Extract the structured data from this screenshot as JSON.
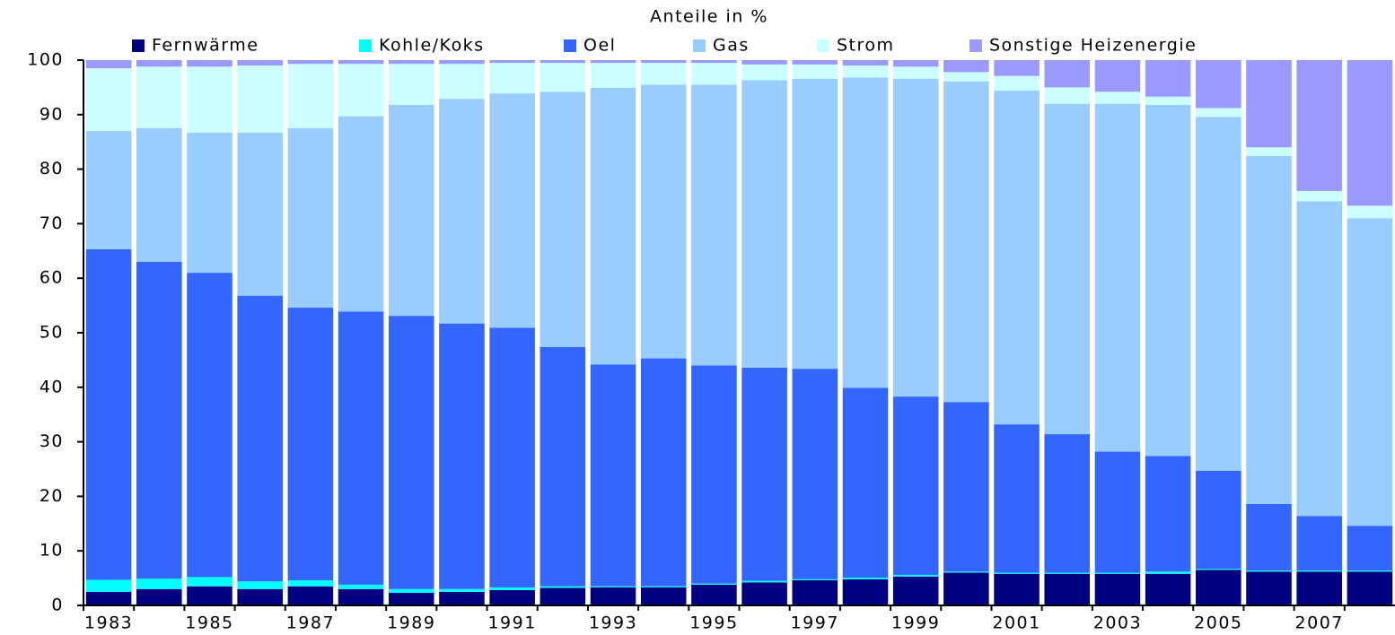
{
  "chart_data": {
    "type": "stacked_bar",
    "title": "Anteile in %",
    "categories": [
      "1983",
      null,
      "1985",
      null,
      "1987",
      null,
      "1989",
      null,
      "1991",
      null,
      "1993",
      null,
      "1995",
      null,
      "1997",
      null,
      "1999",
      null,
      "2001",
      null,
      "2003",
      null,
      "2005",
      null,
      "2007",
      null
    ],
    "series": [
      {
        "name": "Fernwärme",
        "color": "#000080",
        "values": [
          2.5,
          3.0,
          3.5,
          3.0,
          3.5,
          3.0,
          2.3,
          2.5,
          2.8,
          3.2,
          3.3,
          3.3,
          3.8,
          4.2,
          4.6,
          4.8,
          5.3,
          6.0,
          5.8,
          5.8,
          5.8,
          5.8,
          6.5,
          6.2,
          6.2,
          6.2
        ]
      },
      {
        "name": "Kohle/Koks",
        "color": "#00ffff",
        "values": [
          2.2,
          1.9,
          1.7,
          1.4,
          1.1,
          0.8,
          0.7,
          0.5,
          0.5,
          0.3,
          0.2,
          0.2,
          0.2,
          0.3,
          0.2,
          0.3,
          0.3,
          0.2,
          0.2,
          0.2,
          0.2,
          0.4,
          0.2,
          0.2,
          0.2,
          0.2
        ]
      },
      {
        "name": "Oel",
        "color": "#3366ff",
        "values": [
          60.6,
          58.1,
          55.8,
          52.4,
          50.0,
          50.1,
          50.1,
          48.7,
          47.6,
          43.9,
          40.7,
          41.8,
          40.0,
          39.1,
          38.6,
          34.8,
          32.7,
          31.1,
          27.2,
          25.4,
          22.2,
          21.2,
          18.0,
          12.2,
          10.0,
          8.2
        ]
      },
      {
        "name": "Gas",
        "color": "#99ccff",
        "values": [
          21.7,
          24.5,
          25.7,
          29.9,
          32.9,
          35.8,
          38.7,
          41.2,
          43.0,
          46.8,
          50.7,
          50.2,
          51.5,
          52.7,
          53.2,
          56.9,
          58.3,
          58.8,
          61.2,
          60.6,
          63.8,
          64.4,
          64.9,
          63.8,
          57.7,
          56.4
        ]
      },
      {
        "name": "Strom",
        "color": "#ccffff",
        "values": [
          11.5,
          11.3,
          12.1,
          12.3,
          11.8,
          9.6,
          7.5,
          6.4,
          5.6,
          5.3,
          4.6,
          4.0,
          4.0,
          2.9,
          2.6,
          2.2,
          2.2,
          1.7,
          2.7,
          3.0,
          2.2,
          1.5,
          1.6,
          1.6,
          1.9,
          2.3
        ]
      },
      {
        "name": "Sonstige Heizenergie",
        "color": "#9999ff",
        "values": [
          1.5,
          1.2,
          1.2,
          1.0,
          0.7,
          0.7,
          0.7,
          0.7,
          0.5,
          0.5,
          0.5,
          0.5,
          0.5,
          0.8,
          0.8,
          1.0,
          1.2,
          2.2,
          2.9,
          5.0,
          5.8,
          6.7,
          8.8,
          16.0,
          24.0,
          26.7
        ]
      }
    ],
    "ylim": [
      0,
      100
    ],
    "yticks": [
      0,
      10,
      20,
      30,
      40,
      50,
      60,
      70,
      80,
      90,
      100
    ],
    "grid": false,
    "legend": "top"
  }
}
